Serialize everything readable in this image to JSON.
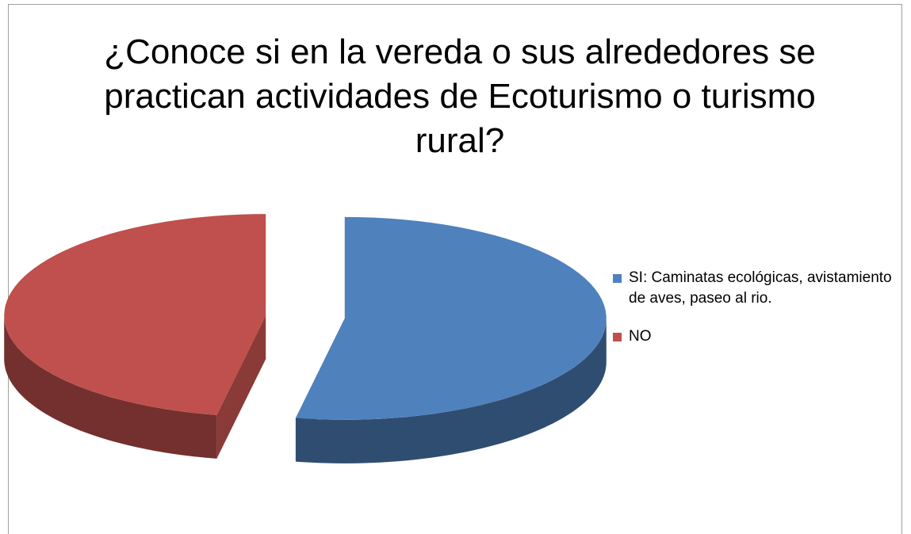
{
  "chart_data": {
    "type": "pie3d",
    "title": "¿Conoce si en la vereda o sus alrededores se practican actividades de Ecoturismo o turismo rural?",
    "categories": [
      "SI: Caminatas ecológicas, avistamiento de aves, paseo al rio.",
      "NO"
    ],
    "values": [
      53,
      47
    ],
    "colors": [
      "#4f81bd",
      "#c0504d"
    ],
    "legend": "right"
  }
}
